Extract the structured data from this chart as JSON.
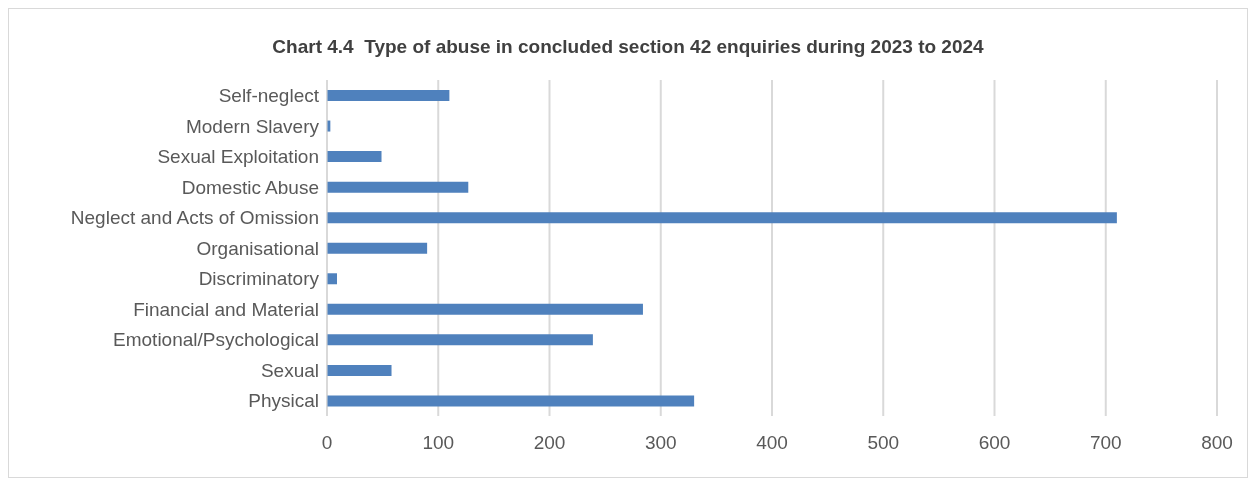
{
  "chart_data": {
    "type": "bar",
    "orientation": "horizontal",
    "title": "Chart 4.4  Type of abuse in concluded section 42 enquiries during 2023 to 2024",
    "categories": [
      "Self-neglect",
      "Modern Slavery",
      "Sexual Exploitation",
      "Domestic Abuse",
      "Neglect and Acts of Omission",
      "Organisational",
      "Discriminatory",
      "Financial and Material",
      "Emotional/Psychological",
      "Sexual",
      "Physical"
    ],
    "values": [
      110,
      3,
      49,
      127,
      710,
      90,
      9,
      284,
      239,
      58,
      330
    ],
    "color": "#4f81bd",
    "xlim": [
      0,
      800
    ],
    "xticks": [
      0,
      100,
      200,
      300,
      400,
      500,
      600,
      700,
      800
    ],
    "grid": "x"
  }
}
